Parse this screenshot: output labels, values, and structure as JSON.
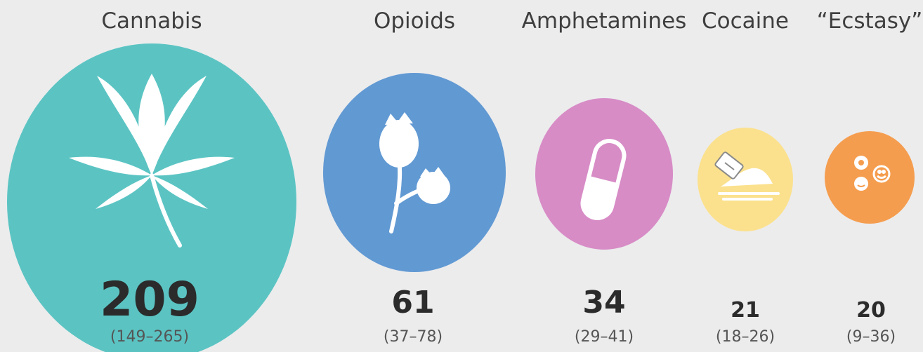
{
  "chart_data": {
    "type": "bubble",
    "categories": [
      "Cannabis",
      "Opioids",
      "Amphetamines",
      "Cocaine",
      "“Ecstasy”"
    ],
    "values": [
      209,
      61,
      34,
      21,
      20
    ],
    "ranges": [
      "(149–265)",
      "(37–78)",
      "(29–41)",
      "(18–26)",
      "(9–36)"
    ],
    "icons": [
      "cannabis-leaf-icon",
      "poppy-icon",
      "capsule-icon",
      "razor-powder-icon",
      "pills-icon"
    ],
    "colors": [
      "#5bc4c3",
      "#6199d3",
      "#d78cc6",
      "#fbe18d",
      "#f59d4e"
    ]
  }
}
